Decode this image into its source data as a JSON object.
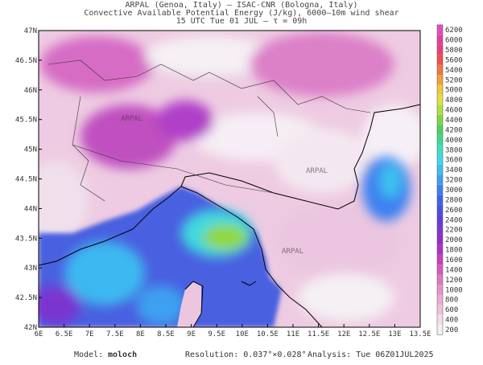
{
  "header": {
    "lines": [
      "ARPAL (Genoa, Italy)  –  ISAC-CNR (Bologna, Italy)",
      "Convective Available Potential Energy (J/kg), 6000–10m wind shear",
      "15 UTC Tue 01 JUL  –  τ = 09h"
    ]
  },
  "map": {
    "lat_ticks": [
      "47N",
      "46.5N",
      "46N",
      "45.5N",
      "45N",
      "44.5N",
      "44N",
      "43.5N",
      "43N",
      "42.5N",
      "42N"
    ],
    "lon_ticks": [
      "6E",
      "6.5E",
      "7E",
      "7.5E",
      "8E",
      "8.5E",
      "9E",
      "9.5E",
      "10E",
      "10.5E",
      "11E",
      "11.5E",
      "12E",
      "12.5E",
      "13E",
      "13.5E"
    ],
    "watermark": "ARPAL"
  },
  "colorbar": {
    "ticks": [
      200,
      400,
      600,
      800,
      1000,
      1200,
      1400,
      1600,
      1800,
      2000,
      2200,
      2400,
      2600,
      2800,
      3000,
      3200,
      3400,
      3600,
      3800,
      4000,
      4200,
      4400,
      4600,
      4800,
      5000,
      5200,
      5400,
      5600,
      5800,
      6000,
      6200
    ],
    "colors": [
      "#f0f0f0",
      "#f5dcea",
      "#f0c0de",
      "#ebaad4",
      "#e494cc",
      "#dc78c4",
      "#d45abc",
      "#c840b8",
      "#b030c0",
      "#9030c8",
      "#7a36d0",
      "#6040d8",
      "#4a50e0",
      "#3c64e8",
      "#3c80f0",
      "#3ca0f0",
      "#3cc0f0",
      "#40d8e8",
      "#40e0c0",
      "#40d890",
      "#50d060",
      "#80d840",
      "#b0e040",
      "#e0e040",
      "#f0c840",
      "#f0a040",
      "#f07840",
      "#f05050",
      "#e84080",
      "#e040a0",
      "#e050c0"
    ]
  },
  "footer": {
    "model_label": "Model:",
    "model": "moloch",
    "resolution": "Resolution: 0.037°×0.028°",
    "analysis": "Analysis: Tue 06Z01JUL2025"
  }
}
